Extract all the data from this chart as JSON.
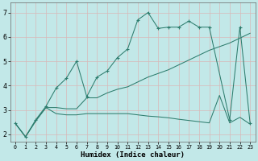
{
  "title": "",
  "xlabel": "Humidex (Indice chaleur)",
  "bg_color": "#c2e8e8",
  "grid_color": "#d8b8b8",
  "line_color": "#2e7d6e",
  "x_ticks": [
    0,
    1,
    2,
    3,
    4,
    5,
    6,
    7,
    8,
    9,
    10,
    11,
    12,
    13,
    14,
    15,
    16,
    17,
    18,
    19,
    20,
    21,
    22,
    23
  ],
  "y_ticks": [
    2,
    3,
    4,
    5,
    6,
    7
  ],
  "xlim": [
    -0.5,
    23.5
  ],
  "ylim": [
    1.7,
    7.4
  ],
  "line1_x": [
    0,
    1,
    2,
    3,
    4,
    5,
    6,
    7,
    8,
    9,
    10,
    11,
    12,
    13,
    14,
    15,
    16,
    17,
    18,
    19,
    21,
    22,
    23
  ],
  "line1_y": [
    2.45,
    1.9,
    2.6,
    3.15,
    3.9,
    4.3,
    5.0,
    3.55,
    4.35,
    4.6,
    5.15,
    5.5,
    6.7,
    7.0,
    6.35,
    6.4,
    6.4,
    6.65,
    6.4,
    6.4,
    2.6,
    6.4,
    2.45
  ],
  "line2_x": [
    0,
    1,
    2,
    3,
    4,
    5,
    6,
    7,
    8,
    9,
    10,
    11,
    12,
    13,
    14,
    15,
    16,
    17,
    18,
    19,
    20,
    21,
    22,
    23
  ],
  "line2_y": [
    2.45,
    1.9,
    2.55,
    3.1,
    3.1,
    3.05,
    3.05,
    3.5,
    3.5,
    3.7,
    3.85,
    3.95,
    4.15,
    4.35,
    4.5,
    4.65,
    4.85,
    5.05,
    5.25,
    5.45,
    5.6,
    5.75,
    5.95,
    6.15
  ],
  "line3_x": [
    0,
    1,
    2,
    3,
    4,
    5,
    6,
    7,
    8,
    9,
    10,
    11,
    12,
    13,
    14,
    15,
    16,
    17,
    18,
    19,
    20,
    21,
    22,
    23
  ],
  "line3_y": [
    2.45,
    1.9,
    2.55,
    3.1,
    2.85,
    2.8,
    2.8,
    2.85,
    2.85,
    2.85,
    2.85,
    2.85,
    2.8,
    2.75,
    2.72,
    2.68,
    2.62,
    2.57,
    2.52,
    2.47,
    3.6,
    2.47,
    2.7,
    2.42
  ]
}
